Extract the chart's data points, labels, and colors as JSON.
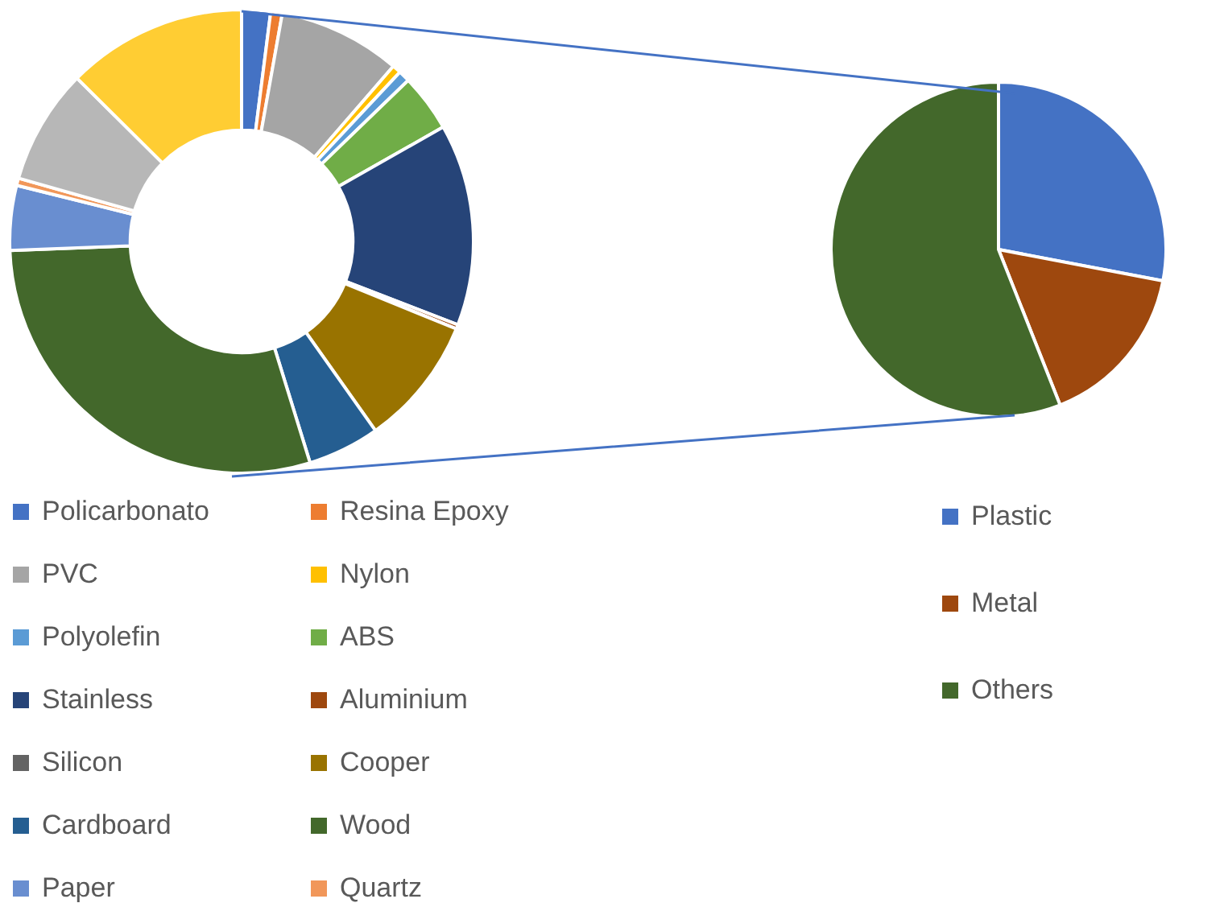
{
  "chart_data": [
    {
      "type": "donut",
      "categories": [
        "Policarbonato",
        "Resina Epoxy",
        "PVC",
        "Nylon",
        "Polyolefin",
        "ABS",
        "Stainless",
        "Aluminium",
        "Silicon",
        "Cooper",
        "Cardboard",
        "Wood",
        "Paper",
        "Quartz",
        null,
        null
      ],
      "values": [
        2,
        0.8,
        8.5,
        0.6,
        0.8,
        4,
        14,
        0.3,
        0,
        9,
        5,
        29,
        4.5,
        0.5,
        8,
        12.5
      ],
      "colors": [
        "#4472c4",
        "#ed7d31",
        "#a5a5a5",
        "#ffc000",
        "#5b9bd5",
        "#70ad47",
        "#264478",
        "#9e480e",
        "#636363",
        "#997300",
        "#255e91",
        "#43682b",
        "#698ed0",
        "#f1975a",
        "#b7b7b7",
        "#ffcd33"
      ],
      "legend": "bottom"
    },
    {
      "type": "pie",
      "categories": [
        "Plastic",
        "Metal",
        "Others"
      ],
      "values": [
        28,
        16,
        56
      ],
      "colors": [
        "#4472c4",
        "#9e480e",
        "#43682b"
      ],
      "legend": "bottom right"
    }
  ]
}
